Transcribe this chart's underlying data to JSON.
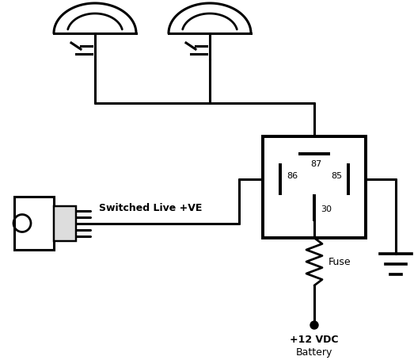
{
  "background_color": "#ffffff",
  "line_color": "#000000",
  "line_width": 2.2,
  "fig_width": 5.23,
  "fig_height": 4.54,
  "dpi": 100,
  "relay_label_87": "87",
  "relay_label_86": "86",
  "relay_label_85": "85",
  "relay_label_30": "30",
  "switched_live_label": "Switched Live +VE",
  "fuse_label": "Fuse",
  "battery_line1": "+12 VDC",
  "battery_line2": "Battery"
}
